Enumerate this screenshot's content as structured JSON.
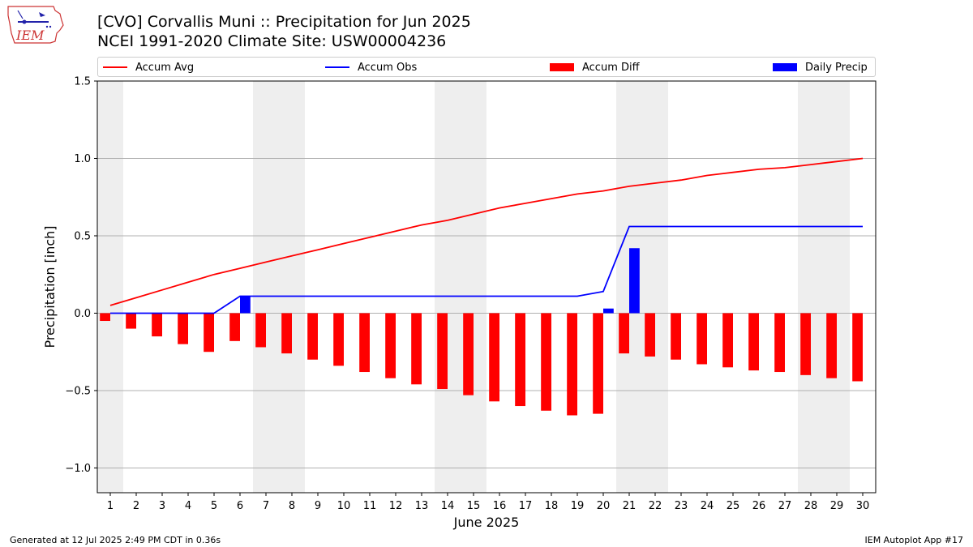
{
  "header": {
    "title_line1": "[CVO] Corvallis Muni :: Precipitation for Jun 2025",
    "title_line2": "NCEI 1991-2020 Climate Site: USW00004236",
    "logo_text": "IEM"
  },
  "legend": {
    "items": [
      {
        "label": "Accum Avg",
        "kind": "line",
        "color": "#ff0000"
      },
      {
        "label": "Accum Obs",
        "kind": "line",
        "color": "#0000ff"
      },
      {
        "label": "Accum Diff",
        "kind": "box",
        "color": "#ff0000"
      },
      {
        "label": "Daily Precip",
        "kind": "box",
        "color": "#0000ff"
      }
    ]
  },
  "footer": {
    "left": "Generated at 12 Jul 2025 2:49 PM CDT in 0.36s",
    "right": "IEM Autoplot App #17"
  },
  "colors": {
    "avg": "#ff0000",
    "obs": "#0000ff",
    "diff": "#ff0000",
    "daily": "#0000ff",
    "weekend_shade": "#eeeeee",
    "grid": "#b0b0b0"
  },
  "chart_data": {
    "type": "bar",
    "title": "[CVO] Corvallis Muni :: Precipitation for Jun 2025",
    "subtitle": "NCEI 1991-2020 Climate Site: USW00004236",
    "xlabel": "June 2025",
    "ylabel": "Precipitation [inch]",
    "ylim": [
      -1.16,
      1.5
    ],
    "yticks": [
      -1.0,
      -0.5,
      0.0,
      0.5,
      1.0,
      1.5
    ],
    "ytick_labels": [
      "−1.0",
      "−0.5",
      "0.0",
      "0.5",
      "1.0",
      "1.5"
    ],
    "x": [
      1,
      2,
      3,
      4,
      5,
      6,
      7,
      8,
      9,
      10,
      11,
      12,
      13,
      14,
      15,
      16,
      17,
      18,
      19,
      20,
      21,
      22,
      23,
      24,
      25,
      26,
      27,
      28,
      29,
      30
    ],
    "weekend_days": [
      1,
      7,
      8,
      14,
      15,
      21,
      22,
      28,
      29
    ],
    "grid": "horizontal",
    "legend_position": "top",
    "series": [
      {
        "name": "Accum Avg",
        "type": "line",
        "values": [
          0.05,
          0.1,
          0.15,
          0.2,
          0.25,
          0.29,
          0.33,
          0.37,
          0.41,
          0.45,
          0.49,
          0.53,
          0.57,
          0.6,
          0.64,
          0.68,
          0.71,
          0.74,
          0.77,
          0.79,
          0.82,
          0.84,
          0.86,
          0.89,
          0.91,
          0.93,
          0.94,
          0.96,
          0.98,
          1.0
        ]
      },
      {
        "name": "Accum Obs",
        "type": "line",
        "values": [
          0.0,
          0.0,
          0.0,
          0.0,
          0.0,
          0.11,
          0.11,
          0.11,
          0.11,
          0.11,
          0.11,
          0.11,
          0.11,
          0.11,
          0.11,
          0.11,
          0.11,
          0.11,
          0.11,
          0.14,
          0.56,
          0.56,
          0.56,
          0.56,
          0.56,
          0.56,
          0.56,
          0.56,
          0.56,
          0.56
        ]
      },
      {
        "name": "Accum Diff",
        "type": "bar",
        "values": [
          -0.05,
          -0.1,
          -0.15,
          -0.2,
          -0.25,
          -0.18,
          -0.22,
          -0.26,
          -0.3,
          -0.34,
          -0.38,
          -0.42,
          -0.46,
          -0.49,
          -0.53,
          -0.57,
          -0.6,
          -0.63,
          -0.66,
          -0.65,
          -0.26,
          -0.28,
          -0.3,
          -0.33,
          -0.35,
          -0.37,
          -0.38,
          -0.4,
          -0.42,
          -0.44
        ]
      },
      {
        "name": "Daily Precip",
        "type": "bar",
        "values": [
          0,
          0,
          0,
          0,
          0,
          0.11,
          0,
          0,
          0,
          0,
          0,
          0,
          0,
          0,
          0,
          0,
          0,
          0,
          0,
          0.03,
          0.42,
          0,
          0,
          0,
          0,
          0,
          0,
          0,
          0,
          0
        ]
      }
    ]
  }
}
